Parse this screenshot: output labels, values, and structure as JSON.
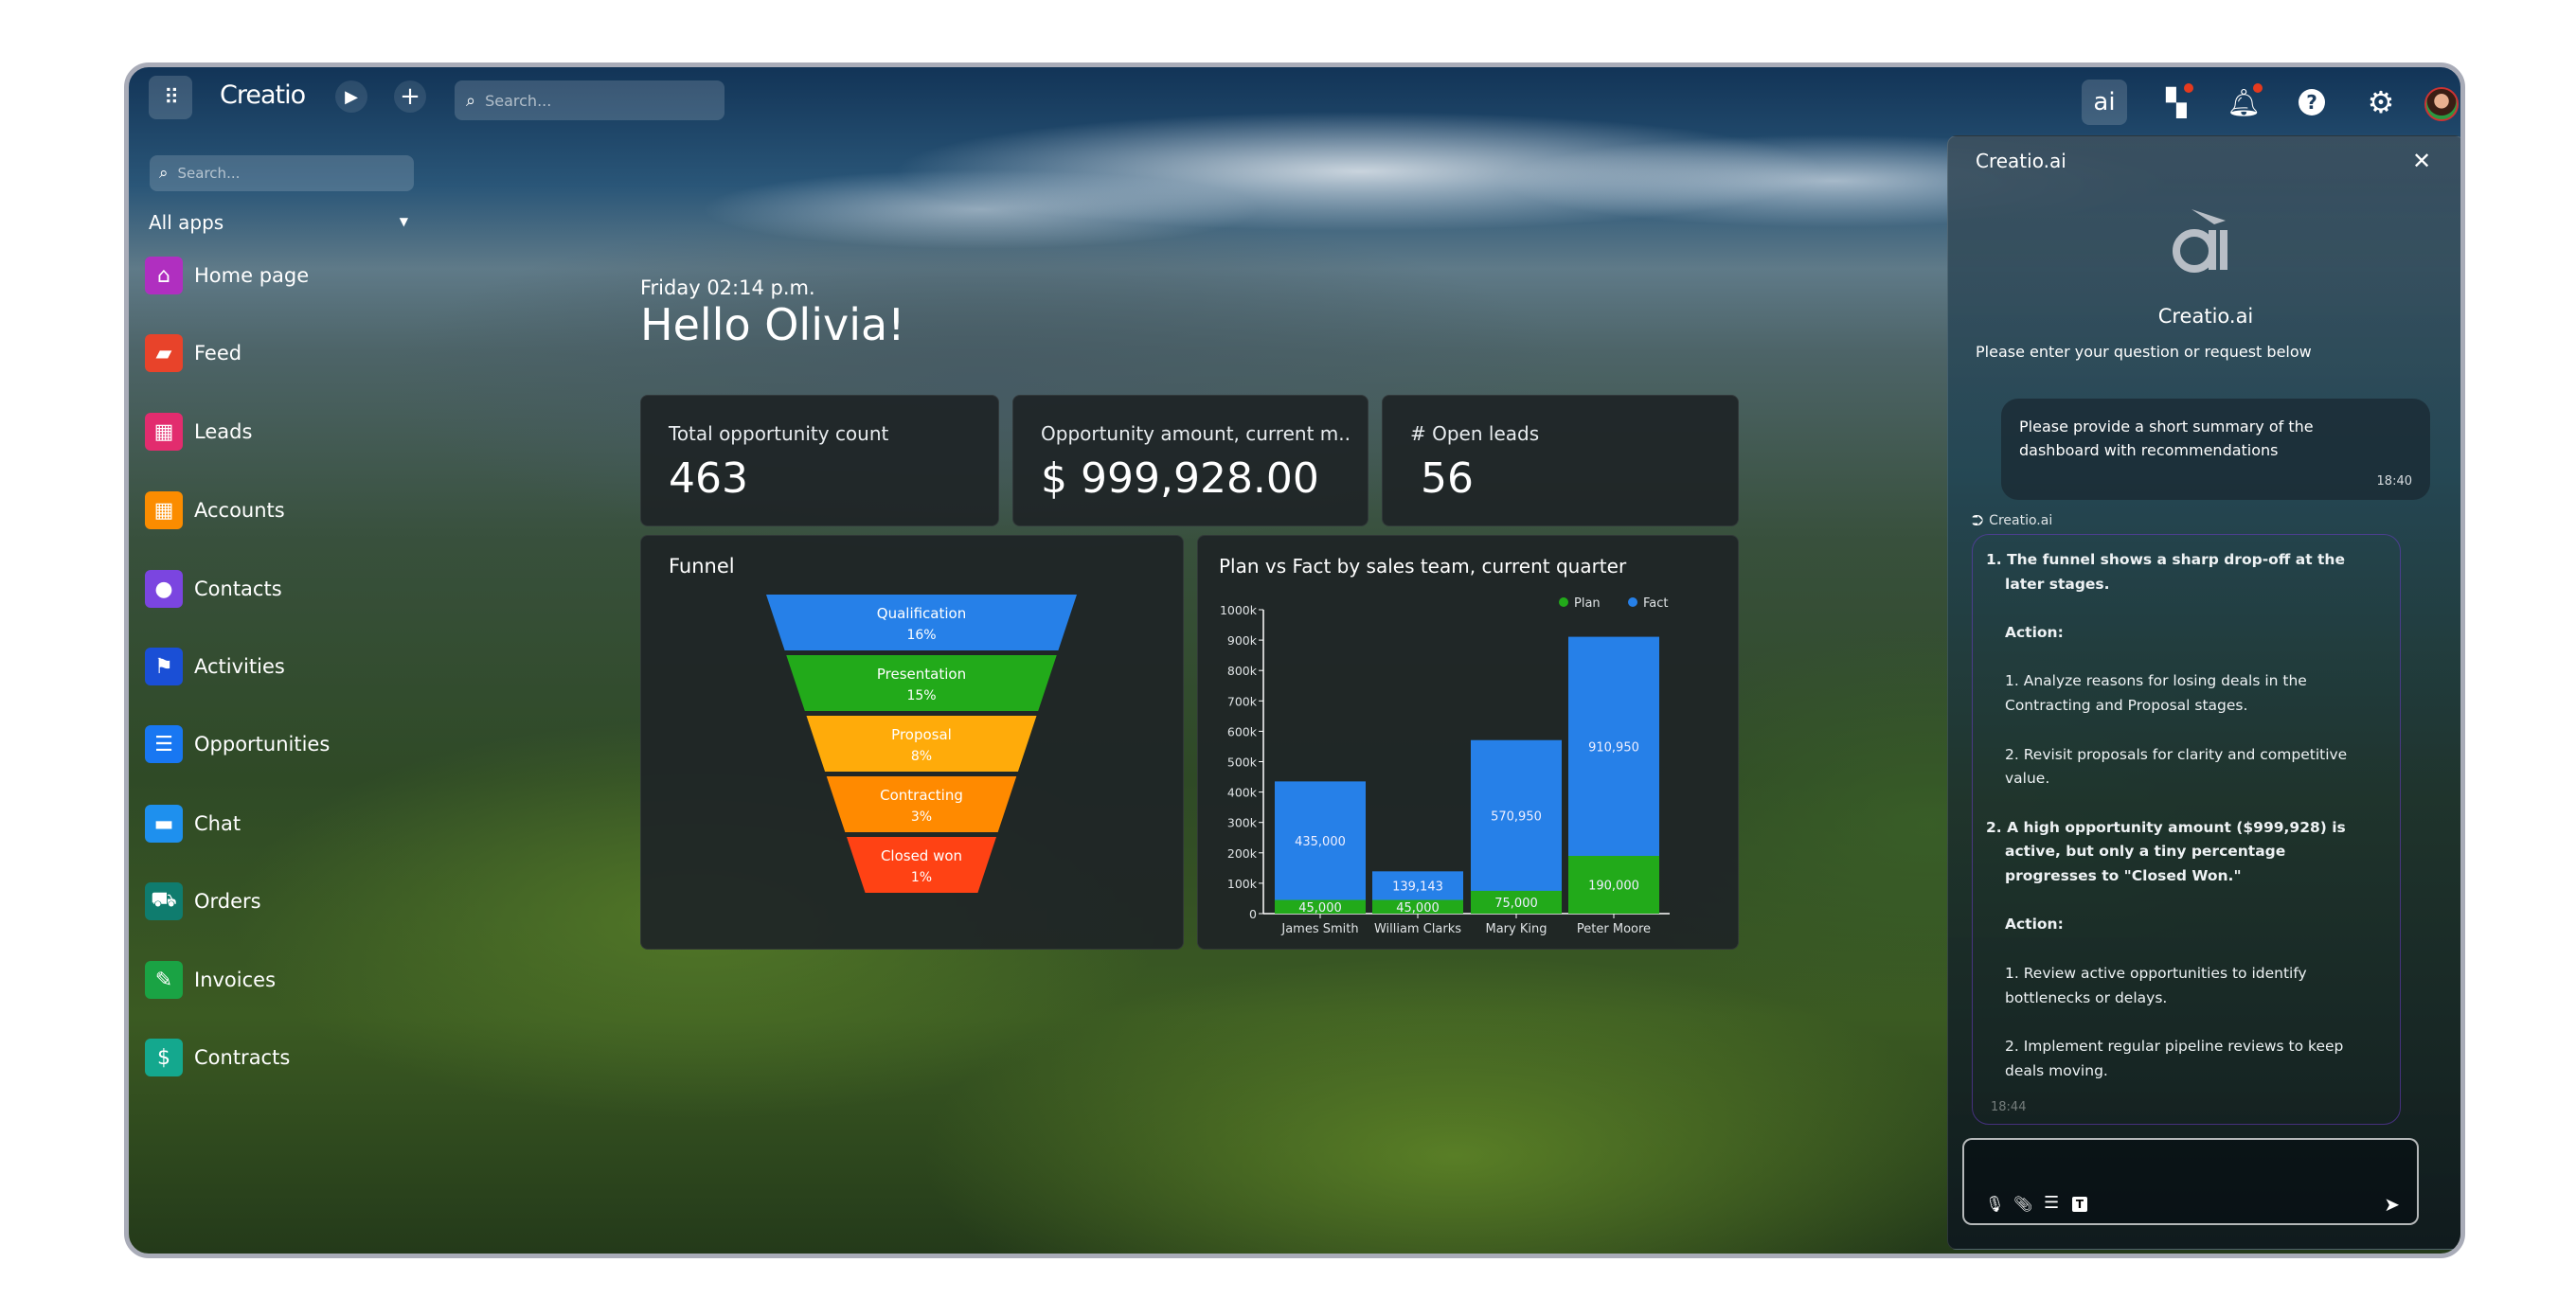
{
  "topbar": {
    "brand": "Creatio",
    "search_placeholder": "Search...",
    "icons": [
      "apps-grid-icon",
      "play-icon",
      "plus-icon",
      "search-icon",
      "ai-icon",
      "app-hub-icon",
      "bell-icon",
      "help-icon",
      "gear-icon",
      "avatar"
    ],
    "notification_color": "#e53a1e"
  },
  "sidebar": {
    "search_placeholder": "Search...",
    "app_filter": "All apps",
    "items": [
      {
        "label": "Home page",
        "icon": "home-icon",
        "color": "#b02fc0",
        "glyph": "⌂"
      },
      {
        "label": "Feed",
        "icon": "feed-icon",
        "color": "#e8432a",
        "glyph": "▰"
      },
      {
        "label": "Leads",
        "icon": "leads-icon",
        "color": "#e22c6e",
        "glyph": "▦"
      },
      {
        "label": "Accounts",
        "icon": "accounts-icon",
        "color": "#fb8c00",
        "glyph": "▦"
      },
      {
        "label": "Contacts",
        "icon": "contacts-icon",
        "color": "#7b45e0",
        "glyph": "●"
      },
      {
        "label": "Activities",
        "icon": "flag-icon",
        "color": "#1a4fd6",
        "glyph": "⚑"
      },
      {
        "label": "Opportunities",
        "icon": "funnel-icon",
        "color": "#1877f2",
        "glyph": "☰"
      },
      {
        "label": "Chat",
        "icon": "chat-icon",
        "color": "#1e90ee",
        "glyph": "▬"
      },
      {
        "label": "Orders",
        "icon": "cart-icon",
        "color": "#0f7c6e",
        "glyph": "⛟"
      },
      {
        "label": "Invoices",
        "icon": "invoice-icon",
        "color": "#1aa344",
        "glyph": "✎"
      },
      {
        "label": "Contracts",
        "icon": "contract-icon",
        "color": "#14a88e",
        "glyph": "$"
      }
    ]
  },
  "greeting": {
    "datetime": "Friday 02:14 p.m.",
    "hello": "Hello Olivia!"
  },
  "kpis": [
    {
      "title": "Total opportunity count",
      "value": "463"
    },
    {
      "title": "Opportunity amount, current m..",
      "value": "$ 999,928.00"
    },
    {
      "title": "# Open leads",
      "value": "56"
    }
  ],
  "funnel": {
    "title": "Funnel",
    "stages": [
      {
        "label": "Qualification",
        "percent": "16%",
        "color": "#2680e8"
      },
      {
        "label": "Presentation",
        "percent": "15%",
        "color": "#22aa1a"
      },
      {
        "label": "Proposal",
        "percent": "8%",
        "color": "#ffab0a"
      },
      {
        "label": "Contracting",
        "percent": "3%",
        "color": "#ff8a00"
      },
      {
        "label": "Closed won",
        "percent": "1%",
        "color": "#ff4214"
      }
    ]
  },
  "chart_data": {
    "type": "bar",
    "title": "Plan vs Fact by sales team, current quarter",
    "categories": [
      "James Smith",
      "William Clarks",
      "Mary King",
      "Peter Moore"
    ],
    "series": [
      {
        "name": "Plan",
        "values": [
          45000,
          45000,
          75000,
          190000
        ],
        "color": "#22aa1a"
      },
      {
        "name": "Fact",
        "values": [
          435000,
          139143,
          570950,
          910950
        ],
        "color": "#2680e8"
      }
    ],
    "data_labels": {
      "Plan": [
        "45,000",
        "45,000",
        "75,000",
        "190,000"
      ],
      "Fact": [
        "435,000",
        "139,143",
        "570,950",
        "910,950"
      ]
    },
    "yticks": [
      "0",
      "100k",
      "200k",
      "300k",
      "400k",
      "500k",
      "600k",
      "700k",
      "800k",
      "900k",
      "1000k"
    ],
    "ylim": [
      0,
      1000000
    ],
    "legend_position": "top-right",
    "grid": false
  },
  "ai_panel": {
    "header": "Creatio.ai",
    "logo_text": "ai",
    "name": "Creatio.ai",
    "prompt": "Please enter your question or request below",
    "user_message": {
      "text": "Please provide a short summary of the dashboard with recommendations",
      "time": "18:40"
    },
    "bot_name": "Creatio.ai",
    "bot_time": "18:44",
    "reply": [
      {
        "text": "1. The funnel shows a sharp drop-off at the later stages.",
        "bold": true,
        "numbered": true
      },
      {
        "text": "Action:",
        "bold": true
      },
      {
        "text": "1. Analyze reasons for losing deals in the Contracting and Proposal stages."
      },
      {
        "text": "2. Revisit proposals for clarity and competitive value."
      },
      {
        "text": "2.  A high opportunity amount ($999,928) is active, but only a tiny percentage progresses to \"Closed Won.\"",
        "bold": true,
        "numbered": true
      },
      {
        "text": "Action:",
        "bold": true
      },
      {
        "text": "1. Review active opportunities to identify bottlenecks or delays."
      },
      {
        "text": "2. Implement regular pipeline reviews to keep deals moving."
      }
    ],
    "input_placeholder": "",
    "input_icons": [
      "microphone-icon",
      "paperclip-icon",
      "table-icon",
      "text-format-icon",
      "send-icon"
    ]
  }
}
